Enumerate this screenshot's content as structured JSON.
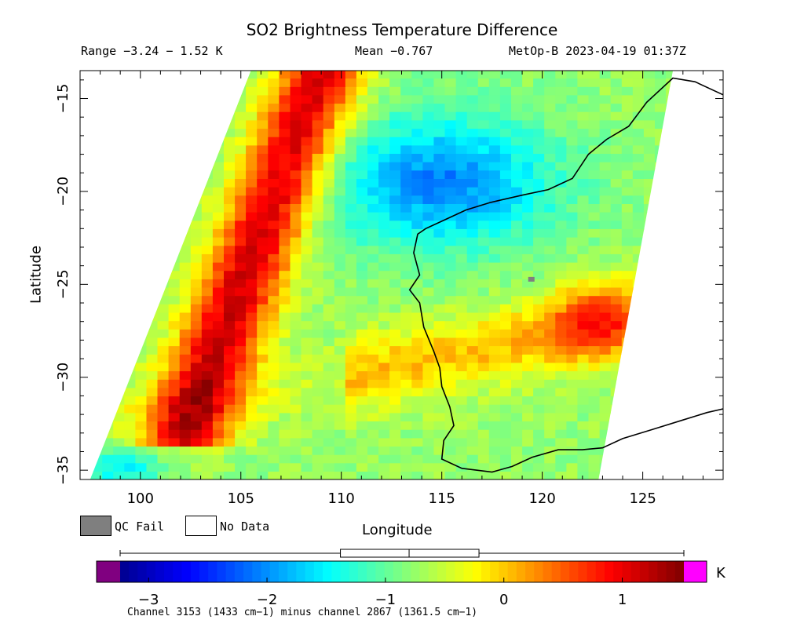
{
  "title": "SO2 Brightness Temperature Difference",
  "range_text": "Range −3.24 − 1.52 K",
  "mean_text": "Mean −0.767",
  "satellite_text": "MetOp-B 2023-04-19 01:37Z",
  "map": {
    "x_axis_label": "Longitude",
    "y_axis_label": "Latitude",
    "lon_range": [
      97,
      129
    ],
    "lat_range": [
      -35.5,
      -13.5
    ],
    "lon_ticks": [
      "100",
      "105",
      "110",
      "115",
      "120",
      "125"
    ],
    "lat_ticks": [
      "−15",
      "−20",
      "−25",
      "−30",
      "−35"
    ],
    "lon_tick_values": [
      100,
      105,
      110,
      115,
      120,
      125
    ],
    "lat_tick_values": [
      -15,
      -20,
      -25,
      -30,
      -35
    ]
  },
  "legend": {
    "qc_fail_label": "QC Fail",
    "qc_fail_color": "#7f7f7f",
    "no_data_label": "No Data",
    "no_data_color": "#ffffff"
  },
  "colorbar": {
    "unit": "K",
    "min": -3.24,
    "max": 1.52,
    "tick_labels": [
      "−3",
      "−2",
      "−1",
      "0",
      "1"
    ],
    "tick_values": [
      -3,
      -2,
      -1,
      0,
      1
    ],
    "under_color": "#800080",
    "over_color": "#ff00ff",
    "stats_box": {
      "p5": -1.38,
      "median": -0.8,
      "p95": -0.21,
      "min": -3.24,
      "max": 1.52
    }
  },
  "footnote": "Channel 3153 (1433 cm−1) minus channel 2867 (1361.5 cm−1)"
}
